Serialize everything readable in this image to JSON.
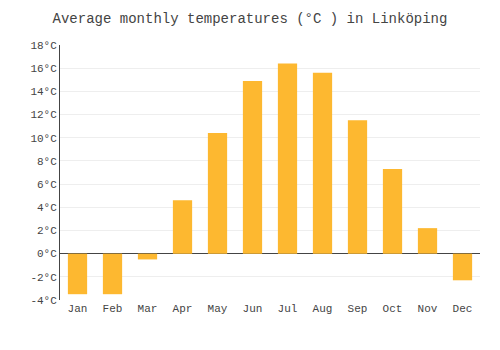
{
  "chart_data": {
    "type": "bar",
    "title": "Average monthly temperatures (°C ) in Linköping",
    "categories": [
      "Jan",
      "Feb",
      "Mar",
      "Apr",
      "May",
      "Jun",
      "Jul",
      "Aug",
      "Sep",
      "Oct",
      "Nov",
      "Dec"
    ],
    "values": [
      -3.5,
      -3.5,
      -0.5,
      4.6,
      10.4,
      14.9,
      16.4,
      15.6,
      11.5,
      7.3,
      2.2,
      -2.3
    ],
    "color": "#FDB830",
    "ylim": [
      -4,
      18
    ],
    "yticks": [
      {
        "value": -4,
        "label": "-4°C"
      },
      {
        "value": -2,
        "label": "-2°C"
      },
      {
        "value": 0,
        "label": "0°C"
      },
      {
        "value": 2,
        "label": "2°C"
      },
      {
        "value": 4,
        "label": "4°C"
      },
      {
        "value": 6,
        "label": "6°C"
      },
      {
        "value": 8,
        "label": "8°C"
      },
      {
        "value": 10,
        "label": "10°C"
      },
      {
        "value": 12,
        "label": "12°C"
      },
      {
        "value": 14,
        "label": "14°C"
      },
      {
        "value": 16,
        "label": "16°C"
      },
      {
        "value": 18,
        "label": "18°C"
      }
    ],
    "grid": true
  }
}
